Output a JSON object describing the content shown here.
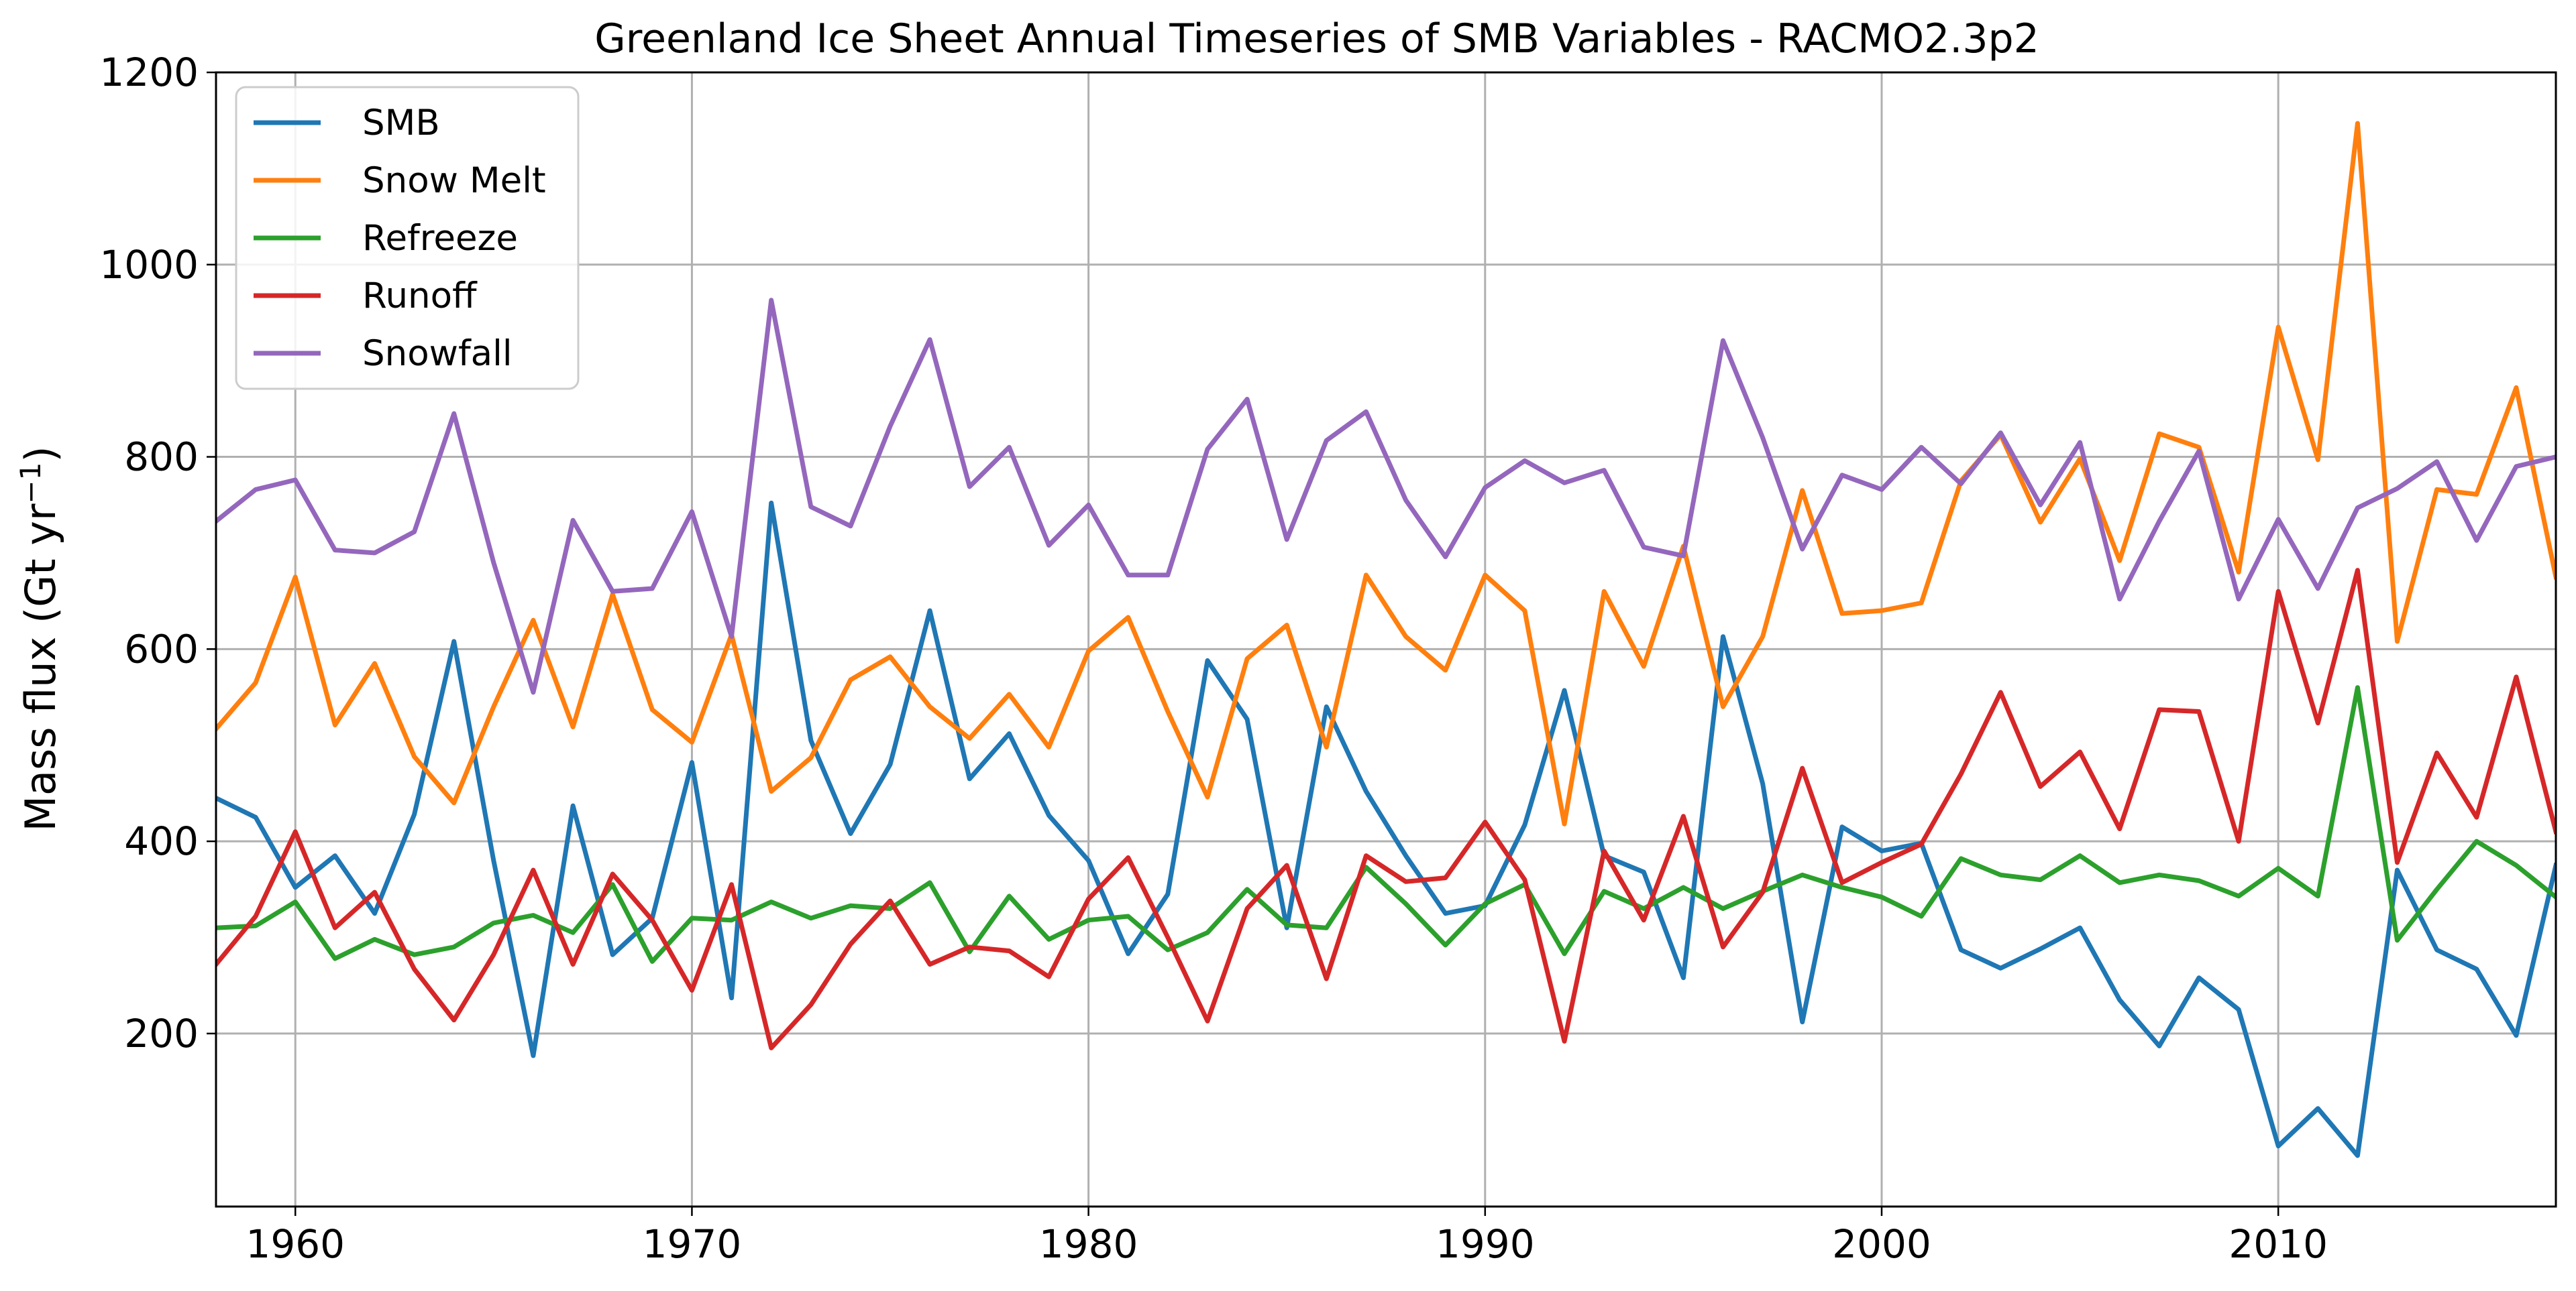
{
  "chart_data": {
    "type": "line",
    "title": "Greenland Ice Sheet Annual Timeseries of SMB Variables - RACMO2.3p2",
    "ylabel": "Mass flux (Gt yr",
    "ylabel_sup": "−1",
    "ylabel_close": ")",
    "xlabel": "",
    "xlim": [
      1958,
      2017
    ],
    "ylim": [
      20,
      1200
    ],
    "xticks": [
      1960,
      1970,
      1980,
      1990,
      2000,
      2010
    ],
    "yticks": [
      200,
      400,
      600,
      800,
      1000,
      1200
    ],
    "grid": true,
    "legend_position": "top-left",
    "x": [
      1958,
      1959,
      1960,
      1961,
      1962,
      1963,
      1964,
      1965,
      1966,
      1967,
      1968,
      1969,
      1970,
      1971,
      1972,
      1973,
      1974,
      1975,
      1976,
      1977,
      1978,
      1979,
      1980,
      1981,
      1982,
      1983,
      1984,
      1985,
      1986,
      1987,
      1988,
      1989,
      1990,
      1991,
      1992,
      1993,
      1994,
      1995,
      1996,
      1997,
      1998,
      1999,
      2000,
      2001,
      2002,
      2003,
      2004,
      2005,
      2006,
      2007,
      2008,
      2009,
      2010,
      2011,
      2012,
      2013,
      2014,
      2015,
      2016,
      2017
    ],
    "series": [
      {
        "name": "SMB",
        "color": "#1f77b4",
        "values": [
          445,
          425,
          352,
          385,
          325,
          428,
          608,
          380,
          177,
          437,
          282,
          320,
          482,
          237,
          752,
          505,
          408,
          480,
          640,
          465,
          512,
          427,
          380,
          283,
          345,
          588,
          527,
          310,
          540,
          452,
          385,
          325,
          333,
          417,
          557,
          385,
          368,
          258,
          613,
          460,
          212,
          415,
          390,
          398,
          287,
          268,
          288,
          310,
          235,
          187,
          258,
          225,
          83,
          122,
          73,
          370,
          287,
          267,
          198,
          375
        ]
      },
      {
        "name": "Snow Melt",
        "color": "#ff7f0e",
        "values": [
          517,
          565,
          675,
          521,
          585,
          488,
          440,
          540,
          630,
          519,
          657,
          537,
          503,
          615,
          452,
          487,
          568,
          592,
          540,
          507,
          553,
          498,
          598,
          633,
          535,
          446,
          590,
          625,
          498,
          677,
          613,
          578,
          677,
          640,
          418,
          660,
          582,
          707,
          540,
          613,
          765,
          637,
          640,
          648,
          775,
          823,
          732,
          798,
          692,
          824,
          810,
          680,
          935,
          797,
          1147,
          608,
          766,
          761,
          872,
          675
        ]
      },
      {
        "name": "Refreeze",
        "color": "#2ca02c",
        "values": [
          310,
          312,
          337,
          278,
          298,
          282,
          290,
          315,
          323,
          305,
          355,
          275,
          320,
          318,
          337,
          320,
          333,
          330,
          357,
          285,
          343,
          298,
          318,
          322,
          287,
          305,
          350,
          313,
          310,
          373,
          335,
          292,
          335,
          355,
          283,
          348,
          330,
          352,
          330,
          348,
          365,
          352,
          342,
          322,
          382,
          365,
          360,
          385,
          357,
          365,
          359,
          343,
          372,
          343,
          560,
          297,
          350,
          400,
          375,
          342
        ]
      },
      {
        "name": "Runoff",
        "color": "#d62728",
        "values": [
          272,
          322,
          410,
          310,
          347,
          267,
          214,
          282,
          370,
          272,
          366,
          318,
          245,
          355,
          185,
          230,
          293,
          338,
          272,
          290,
          286,
          259,
          340,
          383,
          300,
          213,
          330,
          375,
          257,
          385,
          358,
          362,
          420,
          360,
          192,
          390,
          318,
          426,
          290,
          347,
          476,
          357,
          378,
          397,
          470,
          555,
          457,
          493,
          413,
          537,
          535,
          400,
          660,
          523,
          682,
          378,
          492,
          425,
          571,
          410
        ]
      },
      {
        "name": "Snowfall",
        "color": "#9467bd",
        "values": [
          733,
          766,
          776,
          703,
          700,
          722,
          845,
          690,
          555,
          734,
          660,
          663,
          743,
          613,
          963,
          748,
          728,
          832,
          922,
          769,
          810,
          708,
          750,
          677,
          677,
          808,
          860,
          714,
          817,
          847,
          755,
          696,
          768,
          796,
          773,
          786,
          706,
          697,
          921,
          820,
          704,
          781,
          766,
          810,
          772,
          825,
          750,
          815,
          652,
          733,
          806,
          652,
          735,
          663,
          747,
          767,
          795,
          713,
          790,
          800
        ]
      }
    ]
  }
}
